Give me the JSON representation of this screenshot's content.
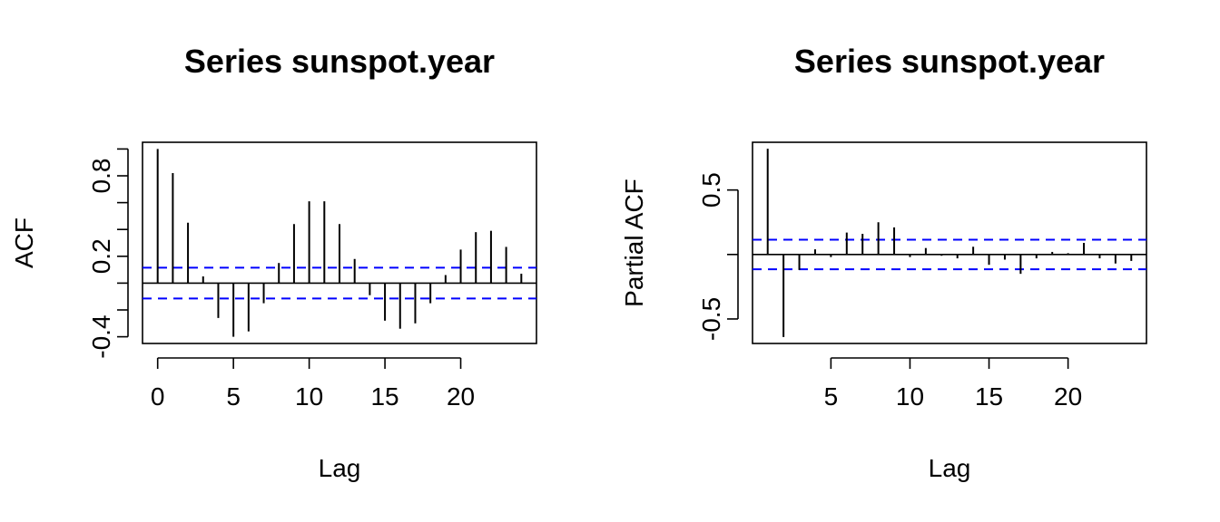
{
  "ci_color": "#0000ff",
  "chart_data": [
    {
      "type": "bar",
      "title": "Series  sunspot.year",
      "xlabel": "Lag",
      "ylabel": "ACF",
      "xlim": [
        -1,
        25
      ],
      "ylim": [
        -0.45,
        1.05
      ],
      "x_ticks": [
        0,
        5,
        10,
        15,
        20
      ],
      "y_ticks": [
        -0.4,
        -0.2,
        0.0,
        0.2,
        0.4,
        0.6,
        0.8,
        1.0
      ],
      "y_tick_labels": [
        "-0.4",
        "",
        "",
        "0.2",
        "",
        "",
        "0.8",
        ""
      ],
      "x": [
        0,
        1,
        2,
        3,
        4,
        5,
        6,
        7,
        8,
        9,
        10,
        11,
        12,
        13,
        14,
        15,
        16,
        17,
        18,
        19,
        20,
        21,
        22,
        23,
        24
      ],
      "values": [
        1.0,
        0.82,
        0.45,
        0.05,
        -0.26,
        -0.4,
        -0.36,
        -0.15,
        0.15,
        0.44,
        0.61,
        0.61,
        0.44,
        0.18,
        -0.09,
        -0.28,
        -0.34,
        -0.3,
        -0.15,
        0.06,
        0.25,
        0.38,
        0.39,
        0.27,
        0.07
      ],
      "ci": 0.115,
      "grid": false
    },
    {
      "type": "bar",
      "title": "Series  sunspot.year",
      "xlabel": "Lag",
      "ylabel": "Partial ACF",
      "xlim": [
        0.04,
        24.96
      ],
      "ylim": [
        -0.69,
        0.87
      ],
      "x_ticks": [
        5,
        10,
        15,
        20
      ],
      "y_ticks": [
        -0.5,
        0.0,
        0.5
      ],
      "y_tick_labels": [
        "-0.5",
        "",
        "0.5"
      ],
      "x": [
        1,
        2,
        3,
        4,
        5,
        6,
        7,
        8,
        9,
        10,
        11,
        12,
        13,
        14,
        15,
        16,
        17,
        18,
        19,
        20,
        21,
        22,
        23,
        24
      ],
      "values": [
        0.82,
        -0.64,
        -0.12,
        0.04,
        -0.02,
        0.17,
        0.16,
        0.25,
        0.21,
        -0.02,
        0.05,
        -0.01,
        -0.03,
        0.06,
        -0.08,
        -0.04,
        -0.15,
        -0.03,
        0.02,
        0.01,
        0.09,
        -0.03,
        -0.07,
        -0.05
      ],
      "ci": 0.115,
      "grid": false
    }
  ]
}
